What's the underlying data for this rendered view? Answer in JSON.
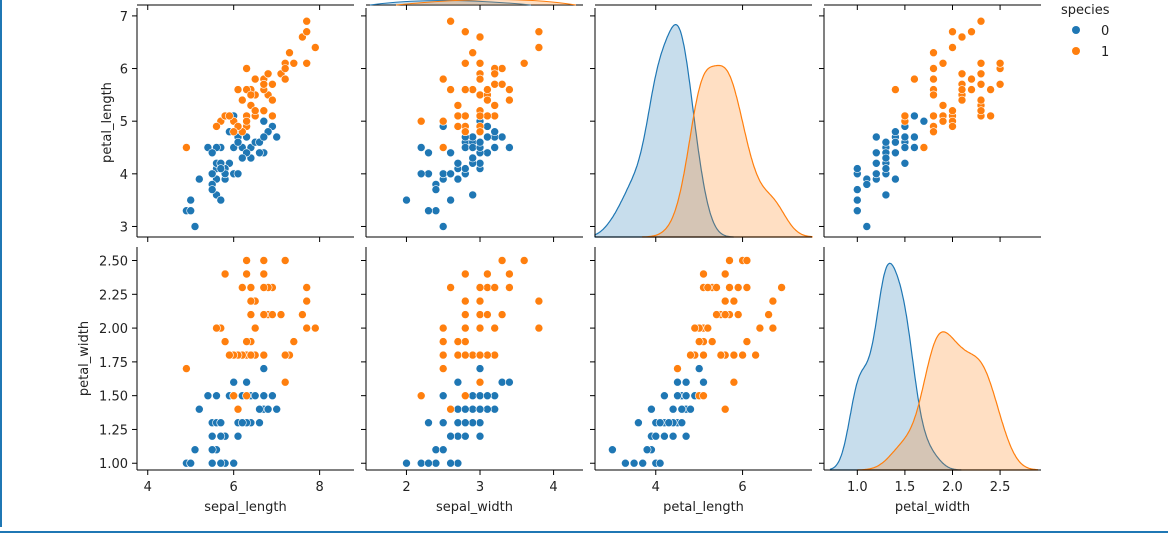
{
  "chart_data": {
    "type": "scatter",
    "kind": "pairplot",
    "hue": "species",
    "legend_title": "species",
    "legend_position": "top-right",
    "grid": false,
    "colors": {
      "0": "#1f77b4",
      "1": "#ff7f0e"
    },
    "legend": [
      {
        "label": "0",
        "color": "#1f77b4"
      },
      {
        "label": "1",
        "color": "#ff7f0e"
      }
    ],
    "x_vars": [
      "sepal_length",
      "sepal_width",
      "petal_length",
      "petal_width"
    ],
    "y_vars": [
      "petal_length",
      "petal_width"
    ],
    "axes": {
      "sepal_length": {
        "range": [
          3.75,
          8.8
        ],
        "ticks": [
          4,
          6,
          8
        ],
        "tick_labels": [
          "4",
          "6",
          "8"
        ]
      },
      "sepal_width": {
        "range": [
          1.45,
          4.4
        ],
        "ticks": [
          2,
          3,
          4
        ],
        "tick_labels": [
          "2",
          "3",
          "4"
        ]
      },
      "petal_length": {
        "range": [
          2.6,
          7.6
        ],
        "ticks": [
          4,
          6
        ],
        "tick_labels": [
          "4",
          "6"
        ]
      },
      "petal_width": {
        "range": [
          0.65,
          2.93
        ],
        "ticks": [
          1.0,
          1.5,
          2.0,
          2.5
        ],
        "tick_labels": [
          "1.0",
          "1.5",
          "2.0",
          "2.5"
        ]
      },
      "petal_length_y": {
        "range": [
          2.8,
          7.15
        ],
        "ticks": [
          3,
          4,
          5,
          6,
          7
        ],
        "tick_labels": [
          "3",
          "4",
          "5",
          "6",
          "7"
        ]
      },
      "petal_width_y": {
        "range": [
          0.95,
          2.6
        ],
        "ticks": [
          1.0,
          1.25,
          1.5,
          1.75,
          2.0,
          2.25,
          2.5
        ],
        "tick_labels": [
          "1.00",
          "1.25",
          "1.50",
          "1.75",
          "2.00",
          "2.25",
          "2.50"
        ]
      }
    },
    "series": [
      {
        "name": "0",
        "sepal_length": [
          7.0,
          6.4,
          6.9,
          5.5,
          6.5,
          5.7,
          6.3,
          4.9,
          6.6,
          5.2,
          5.0,
          5.9,
          6.0,
          6.1,
          5.6,
          6.7,
          5.6,
          5.8,
          6.2,
          5.6,
          5.9,
          6.1,
          6.3,
          6.1,
          6.4,
          6.6,
          6.8,
          6.7,
          6.0,
          5.7,
          5.5,
          5.5,
          5.8,
          6.0,
          5.4,
          6.0,
          6.7,
          6.3,
          5.6,
          5.5,
          5.5,
          6.1,
          5.8,
          5.0,
          5.6,
          5.7,
          5.7,
          6.2,
          5.1,
          5.7
        ],
        "sepal_width": [
          3.2,
          3.2,
          3.1,
          2.3,
          2.8,
          2.8,
          3.3,
          2.4,
          2.9,
          2.7,
          2.0,
          3.0,
          2.2,
          2.9,
          2.9,
          3.1,
          3.0,
          2.7,
          2.2,
          2.5,
          3.2,
          2.8,
          2.5,
          2.8,
          2.9,
          3.0,
          2.8,
          3.0,
          2.9,
          2.6,
          2.4,
          2.4,
          2.7,
          2.7,
          3.0,
          3.4,
          3.1,
          2.3,
          3.0,
          2.5,
          2.6,
          3.0,
          2.6,
          2.3,
          2.7,
          3.0,
          2.9,
          2.9,
          2.5,
          2.8
        ],
        "petal_length": [
          4.7,
          4.5,
          4.9,
          4.0,
          4.6,
          4.5,
          4.7,
          3.3,
          4.6,
          3.9,
          3.5,
          4.2,
          4.0,
          4.7,
          3.6,
          4.4,
          4.5,
          4.1,
          4.5,
          3.9,
          4.8,
          4.0,
          4.9,
          4.7,
          4.3,
          4.4,
          4.8,
          5.0,
          4.5,
          3.5,
          3.8,
          3.7,
          3.9,
          5.1,
          4.5,
          4.5,
          4.7,
          4.4,
          4.1,
          4.0,
          4.4,
          4.6,
          4.0,
          3.3,
          4.2,
          4.2,
          4.2,
          4.3,
          3.0,
          4.1
        ],
        "petal_width": [
          1.4,
          1.5,
          1.5,
          1.3,
          1.5,
          1.3,
          1.6,
          1.0,
          1.3,
          1.4,
          1.0,
          1.5,
          1.0,
          1.4,
          1.3,
          1.4,
          1.5,
          1.0,
          1.5,
          1.1,
          1.8,
          1.3,
          1.5,
          1.2,
          1.3,
          1.4,
          1.4,
          1.7,
          1.5,
          1.0,
          1.1,
          1.0,
          1.2,
          1.6,
          1.5,
          1.6,
          1.5,
          1.3,
          1.3,
          1.3,
          1.2,
          1.4,
          1.2,
          1.0,
          1.3,
          1.2,
          1.3,
          1.3,
          1.1,
          1.3
        ]
      },
      {
        "name": "1",
        "sepal_length": [
          6.3,
          5.8,
          7.1,
          6.3,
          6.5,
          7.6,
          4.9,
          7.3,
          6.7,
          7.2,
          6.5,
          6.4,
          6.8,
          5.7,
          5.8,
          6.4,
          6.5,
          7.7,
          7.7,
          6.0,
          6.9,
          5.6,
          7.7,
          6.3,
          6.7,
          7.2,
          6.2,
          6.1,
          6.4,
          7.2,
          7.4,
          7.9,
          6.4,
          6.3,
          6.1,
          7.7,
          6.3,
          6.4,
          6.0,
          6.9,
          6.7,
          6.9,
          5.8,
          6.8,
          6.7,
          6.7,
          6.3,
          6.5,
          6.2,
          5.9
        ],
        "sepal_width": [
          3.3,
          2.7,
          3.0,
          2.9,
          3.0,
          3.0,
          2.5,
          2.9,
          2.5,
          3.6,
          3.2,
          2.7,
          3.0,
          2.5,
          2.8,
          3.2,
          3.0,
          3.8,
          2.6,
          2.2,
          3.2,
          2.8,
          2.8,
          2.7,
          3.3,
          3.2,
          2.8,
          3.0,
          2.8,
          3.0,
          2.8,
          3.8,
          2.8,
          2.8,
          2.6,
          3.0,
          3.4,
          3.1,
          3.0,
          3.1,
          3.1,
          3.1,
          2.7,
          3.2,
          3.3,
          3.0,
          2.5,
          3.0,
          3.4,
          3.0
        ],
        "petal_length": [
          6.0,
          5.1,
          5.9,
          5.6,
          5.8,
          6.6,
          4.5,
          6.3,
          5.8,
          6.1,
          5.1,
          5.3,
          5.5,
          5.0,
          5.1,
          5.3,
          5.5,
          6.7,
          6.9,
          5.0,
          5.7,
          4.9,
          6.7,
          4.9,
          5.7,
          6.0,
          4.8,
          4.9,
          5.6,
          5.8,
          6.1,
          6.4,
          5.6,
          5.1,
          5.6,
          6.1,
          5.6,
          5.5,
          4.8,
          5.4,
          5.6,
          5.1,
          5.1,
          5.9,
          5.7,
          5.2,
          5.0,
          5.2,
          5.4,
          5.1
        ],
        "petal_width": [
          2.5,
          1.9,
          2.1,
          1.8,
          2.2,
          2.1,
          1.7,
          1.8,
          1.8,
          2.5,
          2.0,
          1.9,
          2.1,
          2.0,
          2.4,
          2.3,
          1.8,
          2.2,
          2.3,
          1.5,
          2.3,
          2.0,
          2.0,
          1.8,
          2.1,
          1.8,
          1.8,
          1.8,
          2.1,
          1.6,
          1.9,
          2.0,
          2.2,
          1.5,
          1.4,
          2.3,
          2.4,
          1.8,
          1.8,
          2.1,
          2.4,
          2.3,
          1.9,
          2.3,
          2.5,
          2.3,
          1.9,
          2.0,
          2.3,
          1.8
        ]
      }
    ]
  }
}
